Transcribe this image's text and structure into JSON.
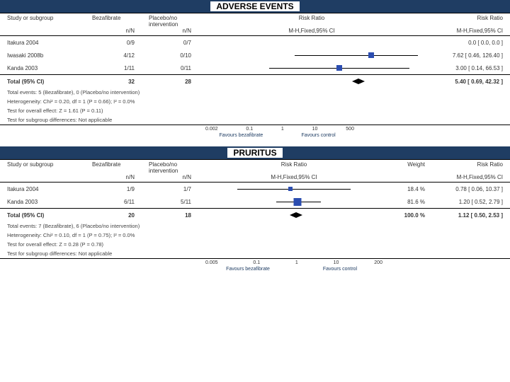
{
  "banner1": {
    "title": "ADVERSE EVENTS",
    "bg": "#1f3d63"
  },
  "banner2": {
    "title": "PRURITUS",
    "bg": "#1f3d63"
  },
  "forest1": {
    "columns": {
      "study": "Study or subgroup",
      "arm1": "Bezafibrate",
      "arm2": "Placebo/no intervention",
      "rr": "Risk Ratio",
      "rr2": "Risk Ratio",
      "sub1": "n/N",
      "sub2": "n/N",
      "sub_rr": "M-H,Fixed,95% CI",
      "sub_rr2": "M-H,Fixed,95% CI"
    },
    "rows": [
      {
        "study": "Itakura 2004",
        "n1": "0/9",
        "n2": "0/7",
        "rr": "0.0 [ 0.0, 0.0 ]",
        "pt": null,
        "lo": null,
        "hi": null
      },
      {
        "study": "Iwasaki 2008b",
        "n1": "4/12",
        "n2": "0/10",
        "rr": "7.62 [ 0.46, 126.40 ]",
        "pt": 0.78,
        "lo": 0.42,
        "hi": 1.0
      },
      {
        "study": "Kanda 2003",
        "n1": "1/11",
        "n2": "0/11",
        "rr": "3.00 [ 0.14, 66.53 ]",
        "pt": 0.63,
        "lo": 0.3,
        "hi": 0.96
      }
    ],
    "total": {
      "label": "Total (95% CI)",
      "n1": "32",
      "n2": "28",
      "rr": "5.40 [ 0.69, 42.32 ]",
      "pt": 0.72,
      "lo": 0.47,
      "hi": 0.94
    },
    "notes": [
      "Total events: 5 (Bezafibrate), 0 (Placebo/no intervention)",
      "Heterogeneity: Chi² = 0.20, df = 1 (P = 0.66); I² = 0.0%",
      "Test for overall effect: Z = 1.61 (P = 0.11)",
      "Test for subgroup differences: Not applicable"
    ],
    "axis": {
      "ticks": [
        "0.002",
        "0.1",
        "1",
        "10",
        "500"
      ],
      "fav_l": "Favours bezafibrate",
      "fav_r": "Favours control"
    },
    "marker_color": "#2b4db0"
  },
  "forest2": {
    "columns": {
      "study": "Study or subgroup",
      "arm1": "Bezafibrate",
      "arm2": "Placebo/no intervention",
      "rr": "Risk Ratio",
      "weight": "Weight",
      "rr2": "Risk Ratio",
      "sub1": "n/N",
      "sub2": "n/N",
      "sub_rr": "M-H,Fixed,95% CI",
      "sub_rr2": "M-H,Fixed,95% CI"
    },
    "rows": [
      {
        "study": "Itakura 2004",
        "n1": "1/9",
        "n2": "1/7",
        "weight": "18.4 %",
        "rr": "0.78 [ 0.06, 10.37 ]",
        "pt": 0.48,
        "lo": 0.18,
        "hi": 0.82,
        "size": 6
      },
      {
        "study": "Kanda 2003",
        "n1": "6/11",
        "n2": "5/11",
        "weight": "81.6 %",
        "rr": "1.20 [ 0.52, 2.79 ]",
        "pt": 0.52,
        "lo": 0.4,
        "hi": 0.65,
        "size": 11
      }
    ],
    "total": {
      "label": "Total (95% CI)",
      "n1": "20",
      "n2": "18",
      "weight": "100.0 %",
      "rr": "1.12 [ 0.50, 2.53 ]",
      "pt": 0.51,
      "lo": 0.4,
      "hi": 0.63
    },
    "notes": [
      "Total events: 7 (Bezafibrate), 6 (Placebo/no intervention)",
      "Heterogeneity: Chi² = 0.10, df = 1 (P = 0.75); I² = 0.0%",
      "Test for overall effect: Z = 0.28 (P = 0.78)",
      "Test for subgroup differences: Not applicable"
    ],
    "axis": {
      "ticks": [
        "0.005",
        "0.1",
        "1",
        "10",
        "200"
      ],
      "fav_l": "Favours bezafibrate",
      "fav_r": "Favours control"
    },
    "marker_color": "#2b4db0"
  }
}
